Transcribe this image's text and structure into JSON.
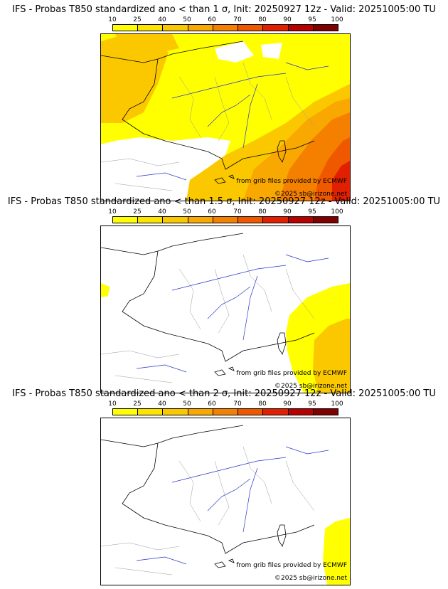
{
  "panels": [
    {
      "title": "IFS - Probas T850  standardized ano < than 1 σ, Init: 20250927 12z - Valid: 20251005:00 TU",
      "ticks": [
        "10",
        "25",
        "40",
        "50",
        "60",
        "70",
        "80",
        "90",
        "95",
        "100"
      ],
      "source_text": "from grib files provided by ECMWF",
      "copyright_text": "©2025 sb@irizone.net"
    },
    {
      "title": "IFS - Probas T850  standardized ano < than 1.5 σ, Init: 20250927 12z - Valid: 20251005:00 TU",
      "ticks": [
        "10",
        "25",
        "40",
        "50",
        "60",
        "70",
        "80",
        "90",
        "95",
        "100"
      ],
      "source_text": "from grib files provided by ECMWF",
      "copyright_text": "©2025 sb@irizone.net"
    },
    {
      "title": "IFS - Probas T850  standardized ano < than 2 σ, Init: 20250927 12z - Valid: 20251005:00 TU",
      "ticks": [
        "10",
        "25",
        "40",
        "50",
        "60",
        "70",
        "80",
        "90",
        "95",
        "100"
      ],
      "source_text": "from grib files provided by ECMWF",
      "copyright_text": "©2025 sb@irizone.net"
    }
  ],
  "colorbar_colors": [
    "#ffff00",
    "#fde400",
    "#fbc800",
    "#f8a800",
    "#f58000",
    "#f05800",
    "#e02000",
    "#b80000",
    "#800000"
  ],
  "colors": {
    "land_border": "#000000",
    "rivers": "#2233cc",
    "admin_borders": "#999999"
  }
}
